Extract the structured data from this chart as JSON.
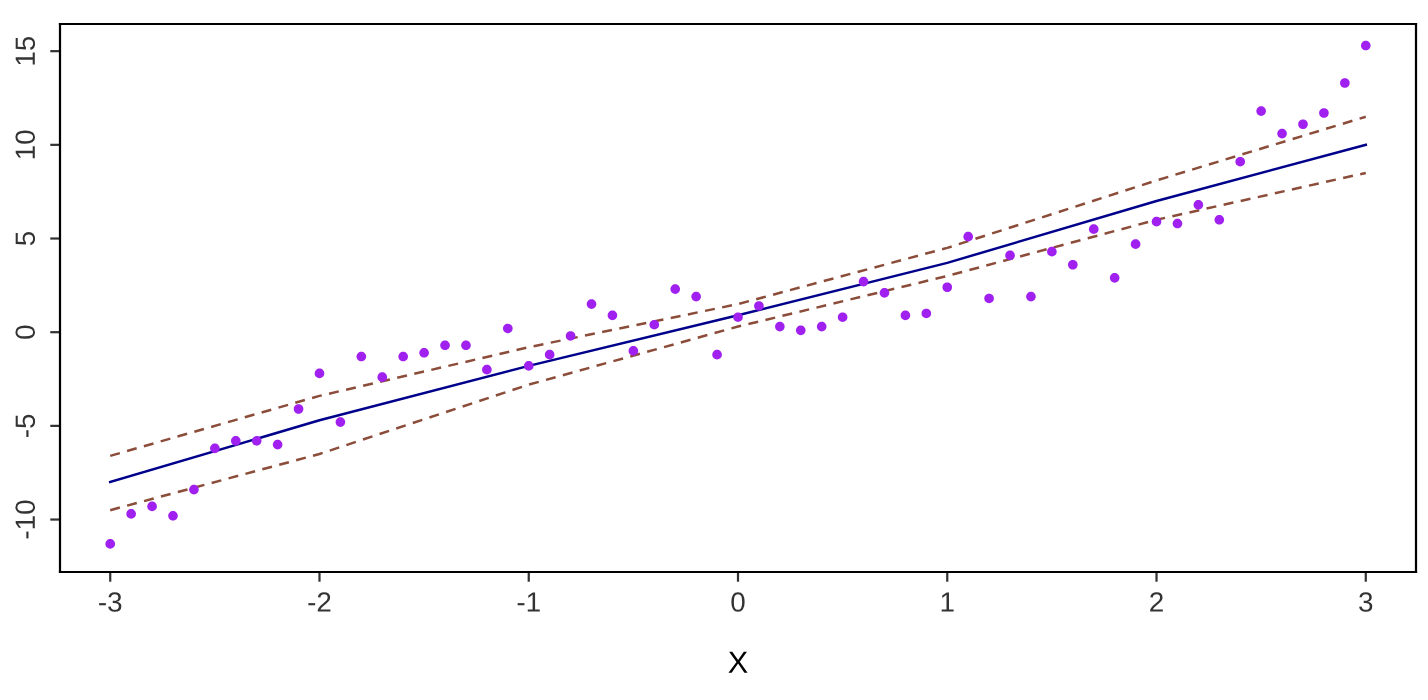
{
  "chart_data": {
    "type": "scatter",
    "xlabel": "X",
    "xlim": [
      -3.24,
      3.24
    ],
    "ylim": [
      -12.8,
      16.45
    ],
    "xticks": [
      -3,
      -2,
      -1,
      0,
      1,
      2,
      3
    ],
    "yticks": [
      -10,
      -5,
      0,
      5,
      10,
      15
    ],
    "grid": false,
    "legend": false,
    "series": [
      {
        "color": "#a020f0",
        "marker": "circle",
        "x": [
          -3.0,
          -2.9,
          -2.8,
          -2.7,
          -2.6,
          -2.5,
          -2.4,
          -2.3,
          -2.2,
          -2.1,
          -2.0,
          -1.9,
          -1.8,
          -1.7,
          -1.6,
          -1.5,
          -1.4,
          -1.3,
          -1.2,
          -1.1,
          -1.0,
          -0.9,
          -0.8,
          -0.7,
          -0.6,
          -0.5,
          -0.4,
          -0.3,
          -0.2,
          -0.1,
          0.0,
          0.1,
          0.2,
          0.3,
          0.4,
          0.5,
          0.6,
          0.7,
          0.8,
          0.9,
          1.0,
          1.1,
          1.2,
          1.3,
          1.4,
          1.5,
          1.6,
          1.7,
          1.8,
          1.9,
          2.0,
          2.1,
          2.2,
          2.3,
          2.4,
          2.5,
          2.6,
          2.7,
          2.8,
          2.9,
          3.0
        ],
        "values": [
          -11.3,
          -9.7,
          -9.3,
          -9.8,
          -8.4,
          -6.2,
          -5.8,
          -5.8,
          -6.0,
          -4.1,
          -2.2,
          -4.8,
          -1.3,
          -2.4,
          -1.3,
          -1.1,
          -0.7,
          -0.7,
          -2.0,
          0.2,
          -1.8,
          -1.2,
          -0.2,
          1.5,
          0.9,
          -1.0,
          0.4,
          2.3,
          1.9,
          -1.2,
          0.8,
          1.4,
          0.3,
          0.1,
          0.3,
          0.8,
          2.7,
          2.1,
          0.9,
          1.0,
          2.4,
          5.1,
          1.8,
          4.1,
          1.9,
          4.3,
          3.6,
          5.5,
          2.9,
          4.7,
          5.9,
          5.8,
          6.8,
          6.0,
          9.1,
          11.8,
          10.6,
          11.1,
          11.7,
          13.3,
          15.3
        ]
      },
      {
        "type": "line",
        "color": "#00008b",
        "line_style": "solid",
        "x": [
          -3,
          -2,
          -1,
          0,
          1,
          2,
          3
        ],
        "values": [
          -8.0,
          -4.7,
          -1.8,
          0.9,
          3.7,
          7.0,
          10.0
        ]
      },
      {
        "type": "line",
        "color": "#8b4c39",
        "line_style": "dashed",
        "x": [
          -3,
          -2,
          -1,
          0,
          1,
          2,
          3
        ],
        "values": [
          -6.6,
          -3.4,
          -0.8,
          1.5,
          4.5,
          8.1,
          11.5
        ]
      },
      {
        "type": "line",
        "color": "#8b4c39",
        "line_style": "dashed",
        "x": [
          -3,
          -2,
          -1,
          0,
          1,
          2,
          3
        ],
        "values": [
          -9.5,
          -6.5,
          -2.8,
          0.3,
          3.0,
          6.0,
          8.5
        ]
      }
    ]
  }
}
